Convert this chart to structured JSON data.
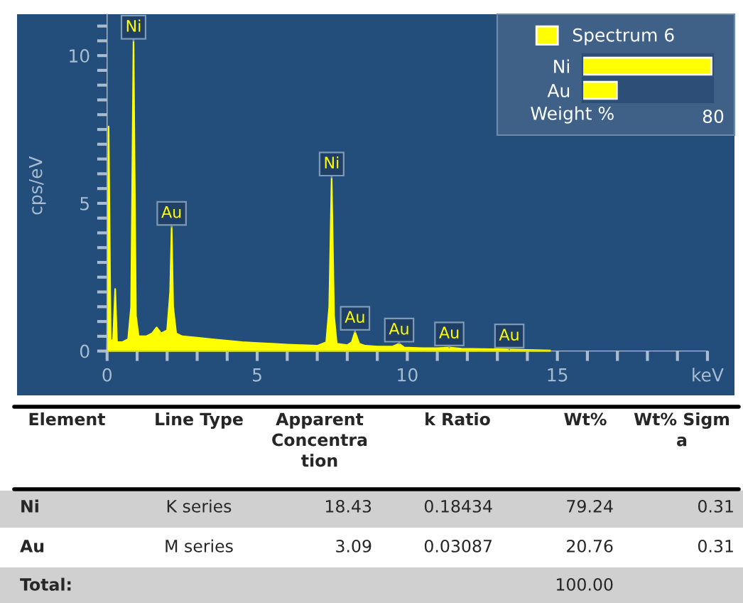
{
  "chart_data": [
    {
      "type": "area",
      "ylabel": "cps/eV",
      "xlim": [
        -3,
        20.9
      ],
      "ylim": [
        -1.5,
        11.4
      ],
      "xticks": [
        0,
        {
          "value": 1,
          "label": null
        },
        {
          "value": 2,
          "label": null
        },
        {
          "value": 3,
          "label": null
        },
        {
          "value": 4,
          "label": null
        },
        5,
        {
          "value": 6,
          "label": null
        },
        {
          "value": 7,
          "label": null
        },
        {
          "value": 8,
          "label": null
        },
        {
          "value": 9,
          "label": null
        },
        10,
        {
          "value": 11,
          "label": null
        },
        {
          "value": 12,
          "label": null
        },
        {
          "value": 13,
          "label": null
        },
        {
          "value": 14,
          "label": null
        },
        15,
        {
          "value": 16,
          "label": null
        },
        {
          "value": 17,
          "label": null
        },
        {
          "value": 18,
          "label": null
        },
        {
          "value": 19,
          "label": null
        },
        {
          "value": 20,
          "label": "keV"
        }
      ],
      "yticks": [
        0,
        {
          "value": 0.5,
          "label": null
        },
        {
          "value": 1,
          "label": null
        },
        {
          "value": 1.5,
          "label": null
        },
        {
          "value": 2,
          "label": null
        },
        {
          "value": 2.5,
          "label": null
        },
        {
          "value": 3,
          "label": null
        },
        {
          "value": 3.5,
          "label": null
        },
        {
          "value": 4,
          "label": null
        },
        {
          "value": 4.5,
          "label": null
        },
        5,
        {
          "value": 5.5,
          "label": null
        },
        {
          "value": 6,
          "label": null
        },
        {
          "value": 6.5,
          "label": null
        },
        {
          "value": 7,
          "label": null
        },
        {
          "value": 7.5,
          "label": null
        },
        {
          "value": 8,
          "label": null
        },
        {
          "value": 8.5,
          "label": null
        },
        {
          "value": 9,
          "label": null
        },
        {
          "value": 9.5,
          "label": null
        },
        10,
        {
          "value": 10.5,
          "label": null
        },
        {
          "value": 11,
          "label": null
        }
      ],
      "series": [
        {
          "color": "#ffff00",
          "x": [
            0,
            0.05,
            0.12,
            0.2,
            0.27,
            0.33,
            0.5,
            0.7,
            0.8,
            0.88,
            0.96,
            1.05,
            1.3,
            1.5,
            1.65,
            1.8,
            2.0,
            2.1,
            2.15,
            2.2,
            2.3,
            2.5,
            3.0,
            3.5,
            4.0,
            4.5,
            5.0,
            5.5,
            6.0,
            6.5,
            7.0,
            7.3,
            7.4,
            7.48,
            7.56,
            7.65,
            8.0,
            8.15,
            8.26,
            8.4,
            8.6,
            9.0,
            9.5,
            9.73,
            9.9,
            10.5,
            11.0,
            11.4,
            11.8,
            12.5,
            13.0,
            13.5,
            14.0,
            14.76
          ],
          "values": [
            0,
            7.6,
            0.3,
            0.4,
            2.1,
            0.3,
            0.3,
            0.4,
            1.5,
            10.5,
            1.2,
            0.5,
            0.5,
            0.6,
            0.8,
            0.6,
            0.7,
            2.0,
            4.2,
            1.5,
            0.6,
            0.5,
            0.45,
            0.4,
            0.35,
            0.3,
            0.27,
            0.25,
            0.22,
            0.2,
            0.18,
            0.3,
            1.5,
            5.87,
            1.2,
            0.25,
            0.2,
            0.3,
            0.65,
            0.25,
            0.18,
            0.15,
            0.15,
            0.25,
            0.12,
            0.1,
            0.1,
            0.12,
            0.08,
            0.07,
            0.06,
            0.05,
            0.04,
            0.02
          ]
        }
      ],
      "annotations": [
        {
          "text": "Ni",
          "x": 0.88,
          "y": 10.5
        },
        {
          "text": "Au",
          "x": 2.15,
          "y": 4.2
        },
        {
          "text": "Ni",
          "x": 7.48,
          "y": 5.87
        },
        {
          "text": "Au",
          "x": 8.26,
          "y": 0.65
        },
        {
          "text": "Au",
          "x": 9.73,
          "y": 0.25
        },
        {
          "text": "Au",
          "x": 11.4,
          "y": 0.12
        },
        {
          "text": "Au",
          "x": 13.4,
          "y": 0.05
        }
      ]
    },
    {
      "type": "bar",
      "orientation": "horizontal",
      "categories": [
        "Ni",
        "Au"
      ],
      "xlabel": "Weight %",
      "legend": "top",
      "xlim": [
        0,
        80
      ],
      "xticks": [
        {
          "value": 0,
          "label": null
        },
        80
      ],
      "series": [
        {
          "name": "Spectrum 6",
          "color": "#ffff00",
          "values": [
            79,
            21
          ]
        }
      ]
    },
    {
      "type": "other",
      "annotations": [
        "Element",
        "Line Type",
        "Apparent\nConcentra\ntion",
        "k Ratio",
        "Wt%",
        "Wt% Sigm\na",
        "Ni",
        "K series",
        "18.43",
        "0.18434",
        "79.24",
        "0.31",
        "Au",
        "M series",
        "3.09",
        "0.03087",
        "20.76",
        "0.31",
        "Total:",
        null,
        null,
        null,
        "100.00",
        null
      ]
    }
  ]
}
